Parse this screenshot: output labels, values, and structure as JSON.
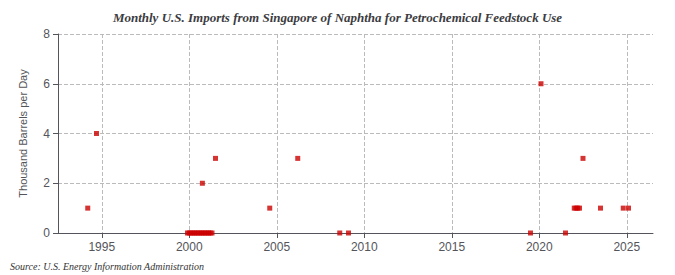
{
  "chart_data": {
    "type": "scatter",
    "title": "Monthly U.S. Imports from Singapore of Naphtha for Petrochemical Feedstock Use",
    "ylabel": "Thousand Barrels per Day",
    "source": "Source: U.S. Energy Information Administration",
    "x": [
      1994.2,
      1994.7,
      1999.9,
      2000.0,
      2000.1,
      2000.2,
      2000.3,
      2000.4,
      2000.5,
      2000.6,
      2000.7,
      2000.8,
      2000.9,
      2001.0,
      2001.1,
      2001.2,
      2001.3,
      2000.75,
      2001.5,
      2004.6,
      2006.2,
      2008.6,
      2009.1,
      2019.5,
      2020.1,
      2021.5,
      2022.0,
      2022.1,
      2022.2,
      2022.3,
      2022.5,
      2023.5,
      2024.8,
      2025.1
    ],
    "values": [
      1.0,
      4.0,
      0.0,
      0.0,
      0.0,
      0.0,
      0.0,
      0.0,
      0.0,
      0.0,
      0.0,
      0.0,
      0.0,
      0.0,
      0.0,
      0.0,
      0.0,
      2.0,
      3.0,
      1.0,
      3.0,
      0.0,
      0.0,
      0.0,
      6.0,
      0.0,
      1.0,
      1.0,
      1.0,
      1.0,
      3.0,
      1.0,
      1.0,
      1.0
    ],
    "color": "#cc0000",
    "marker": "square",
    "xlim": [
      1992.5,
      2026.5
    ],
    "xticks": [
      1995,
      2000,
      2005,
      2010,
      2015,
      2020,
      2025
    ],
    "ylim": [
      0,
      8
    ],
    "yticks": [
      0,
      2,
      4,
      6,
      8
    ],
    "grid": true
  }
}
